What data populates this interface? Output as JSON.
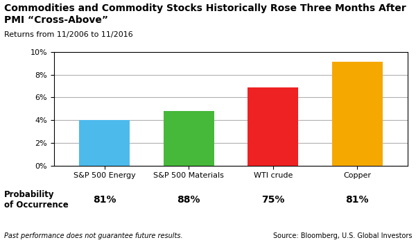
{
  "chart_data": {
    "type": "bar",
    "title": "Commodities and Commodity Stocks Historically Rose Three Months After PMI “Cross-Above”",
    "subtitle": "Returns from 11/2006 to 11/2016",
    "categories": [
      "S&P 500 Energy",
      "S&P 500 Materials",
      "WTI crude",
      "Copper"
    ],
    "values": [
      3.98,
      4.82,
      6.9,
      9.15
    ],
    "colors": [
      "#4DBAEC",
      "#46B83A",
      "#EE2222",
      "#F5A800"
    ],
    "ylim": [
      0,
      10
    ],
    "yticks": [
      {
        "value": 0,
        "label": "0%"
      },
      {
        "value": 2,
        "label": "2%"
      },
      {
        "value": 4,
        "label": "4%"
      },
      {
        "value": 6,
        "label": "6%"
      },
      {
        "value": 8,
        "label": "8%"
      },
      {
        "value": 10,
        "label": "10%"
      }
    ],
    "grid": true,
    "table": {
      "label": "Probability\nof Occurrence",
      "cells": [
        "81%",
        "88%",
        "75%",
        "81%"
      ]
    },
    "footer": "Past performance does not guarantee future results.",
    "source": "Source: Bloomberg, U.S. Global Investors"
  }
}
